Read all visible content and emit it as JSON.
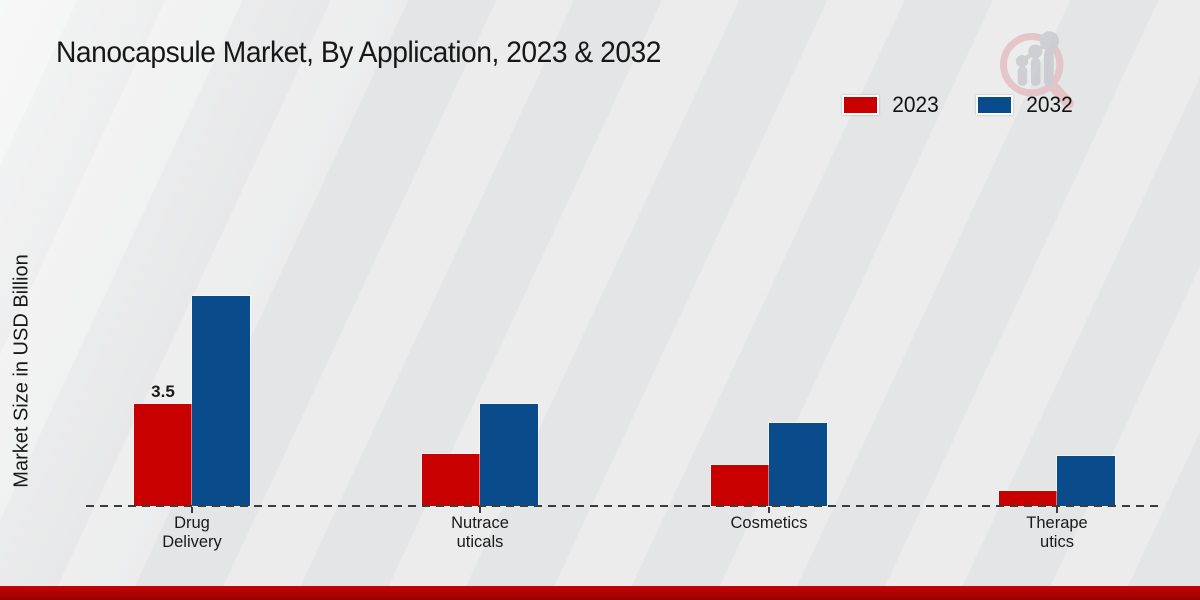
{
  "title": "Nanocapsule Market, By Application, 2023 & 2032",
  "ylabel": "Market Size in USD Billion",
  "legend": {
    "items": [
      {
        "label": "2023",
        "color": "#c80000"
      },
      {
        "label": "2032",
        "color": "#0a4b8c"
      }
    ]
  },
  "colors": {
    "series_2023": "#c80000",
    "series_2032": "#0a4b8c",
    "bottom_band": "#b30202",
    "background": "#e8e9ea",
    "text": "#1a1a1a"
  },
  "chart_data": {
    "type": "bar",
    "title": "Nanocapsule Market, By Application, 2023 & 2032",
    "xlabel": "",
    "ylabel": "Market Size in USD Billion",
    "categories": [
      "Drug Delivery",
      "Nutraceuticals",
      "Cosmetics",
      "Therapeutics"
    ],
    "category_display_lines": [
      [
        "Drug",
        "Delivery"
      ],
      [
        "Nutrace",
        "uticals"
      ],
      [
        "Cosmetics"
      ],
      [
        "Therape",
        "utics"
      ]
    ],
    "series": [
      {
        "name": "2023",
        "color": "#c80000",
        "values": [
          3.5,
          1.8,
          1.4,
          0.5
        ]
      },
      {
        "name": "2032",
        "color": "#0a4b8c",
        "values": [
          7.2,
          3.5,
          2.85,
          1.7
        ]
      }
    ],
    "data_labels": [
      {
        "series": "2023",
        "category": "Drug Delivery",
        "text": "3.5"
      }
    ],
    "ylim": [
      0,
      8
    ],
    "grid": false,
    "axis_style": "dashed-zero-baseline-only",
    "legend_position": "top-right"
  }
}
